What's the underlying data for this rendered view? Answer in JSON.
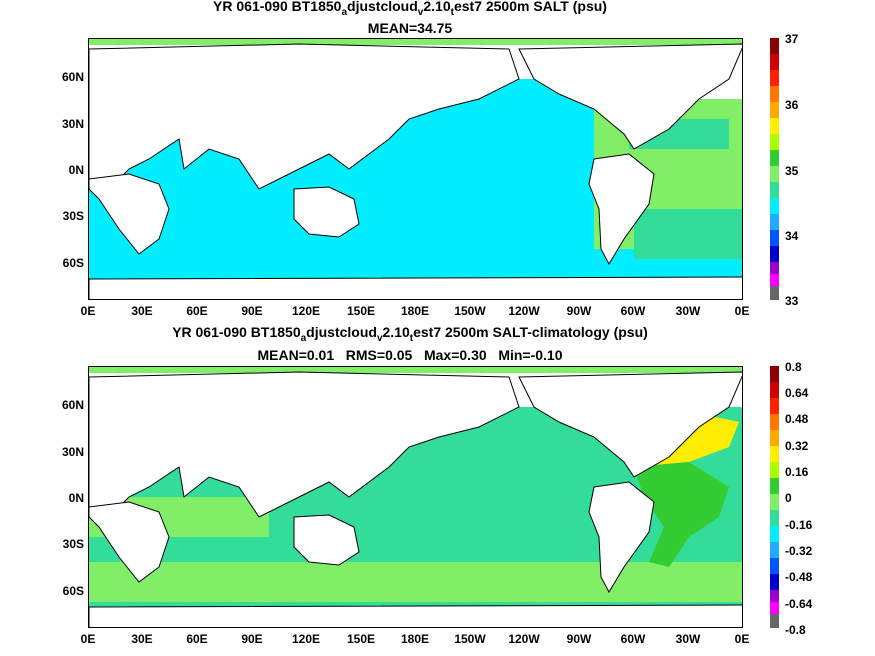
{
  "panel1": {
    "title_a": "YR 061-090 BT1850",
    "sub_a": "a",
    "title_b": "djustcloud",
    "sub_v": "v",
    "title_c": "2.10",
    "sub_t": "t",
    "title_d": "est7 2500m SALT (psu)",
    "stats": "MEAN=34.75",
    "colorbar_labels": [
      "37",
      "36",
      "35",
      "34",
      "33"
    ]
  },
  "panel2": {
    "title_a": "YR 061-090 BT1850",
    "sub_a": "a",
    "title_b": "djustcloud",
    "sub_v": "v",
    "title_c": "2.10",
    "sub_t": "t",
    "title_d": "est7 2500m SALT-climatology (psu)",
    "stats": "MEAN=0.01   RMS=0.05   Max=0.30   Min=-0.10",
    "colorbar_labels": [
      "0.8",
      "0.64",
      "0.48",
      "0.32",
      "0.16",
      "0",
      "-0.16",
      "-0.32",
      "-0.48",
      "-0.64",
      "-0.8"
    ]
  },
  "lat_labels": [
    "60N",
    "30N",
    "0N",
    "30S",
    "60S"
  ],
  "lon_labels": [
    "0E",
    "30E",
    "60E",
    "90E",
    "120E",
    "150E",
    "180E",
    "150W",
    "120W",
    "90W",
    "60W",
    "30W",
    "0E"
  ],
  "colors": {
    "deep_ocean": "#00eeff",
    "ocean_fresh_bias": "#33dd99",
    "light_green": "#80ee66",
    "green": "#33cc33",
    "yellow": "#ffee00",
    "land": "#ffffff",
    "coast": "#000000"
  }
}
